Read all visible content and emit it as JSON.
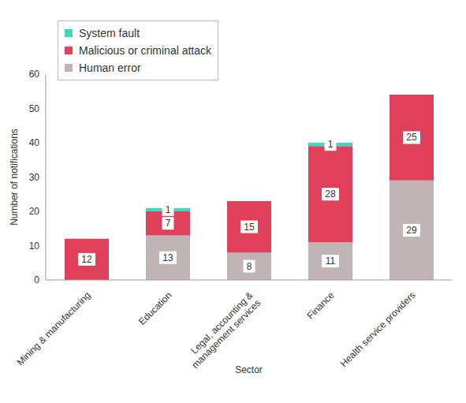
{
  "chart_data": {
    "type": "bar",
    "stacked": true,
    "data_labels": true,
    "legend": "upper left",
    "grid": false,
    "x_label": "Sector",
    "y_label": "Number of notifications",
    "categories": [
      "Mining & manufacturing",
      "Education",
      "Legal, accounting & management services",
      "Finance",
      "Health service providers"
    ],
    "series": [
      {
        "name": "Human error",
        "color": "#c0b4b6",
        "values": [
          null,
          13,
          8,
          11,
          29
        ]
      },
      {
        "name": "Malicious or criminal attack",
        "color": "#e0405a",
        "values": [
          12,
          7,
          15,
          28,
          25
        ]
      },
      {
        "name": "System fault",
        "color": "#3fd6c3",
        "values": [
          null,
          1,
          null,
          1,
          null
        ]
      }
    ],
    "ylim": [
      0,
      60
    ],
    "yticks": [
      0,
      10,
      20,
      30,
      40,
      50,
      60
    ]
  }
}
